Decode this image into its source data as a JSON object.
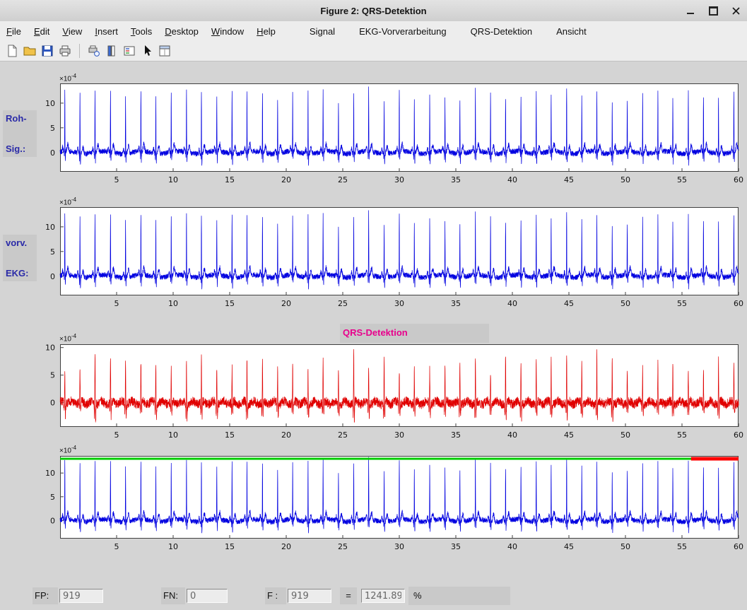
{
  "window": {
    "title": "Figure 2: QRS-Detektion",
    "controls": [
      "minimize",
      "maximize",
      "close"
    ]
  },
  "menu": {
    "items": [
      {
        "label": "File",
        "accel": true
      },
      {
        "label": "Edit",
        "accel": true
      },
      {
        "label": "View",
        "accel": true
      },
      {
        "label": "Insert",
        "accel": true
      },
      {
        "label": "Tools",
        "accel": true
      },
      {
        "label": "Desktop",
        "accel": true
      },
      {
        "label": "Window",
        "accel": true
      },
      {
        "label": "Help",
        "accel": true
      },
      {
        "label": "Signal",
        "accel": false,
        "gap_before": true,
        "wide": true
      },
      {
        "label": "EKG-Vorverarbeitung",
        "accel": false,
        "wide": true
      },
      {
        "label": "QRS-Detektion",
        "accel": false,
        "wide": true
      },
      {
        "label": "Ansicht",
        "accel": false,
        "wide": true
      }
    ]
  },
  "toolbar": {
    "icons": [
      "new-file",
      "open-folder",
      "save",
      "print",
      "separator",
      "print-preview",
      "colorbar",
      "legend",
      "pointer",
      "property-inspector"
    ]
  },
  "labels": {
    "exponent_base": "×10",
    "exponent_power": "-4",
    "raw_line1": "Roh-",
    "raw_line2": "Sig.:",
    "pre_line1": "vorv.",
    "pre_line2": "EKG:",
    "qrs_title": "QRS-Detektion"
  },
  "stats": {
    "fp_label": "FP:",
    "fp_value": "919",
    "fn_label": "FN:",
    "fn_value": "0",
    "f_label": "F :",
    "f_value": "919",
    "equals_label": "=",
    "percent_value": "1241.891",
    "percent_sign": "%"
  },
  "chart_data": [
    {
      "type": "line",
      "name": "raw-ecg-signal",
      "signal": "ecg",
      "color": "#0000e0",
      "seed": 42,
      "x_range_s": [
        0,
        60
      ],
      "xticks": [
        5,
        10,
        15,
        20,
        25,
        30,
        35,
        40,
        45,
        50,
        55,
        60
      ],
      "ylim_e4": [
        -3.9,
        14.0
      ],
      "yticks_e4": [
        0,
        5,
        10
      ],
      "y_scale_label": "×10^-4",
      "sample_dt_s": 0.01,
      "r_amp_range_e4": [
        10.6,
        13.4
      ],
      "beats_s": [
        0.42,
        1.76,
        3.09,
        4.46,
        5.79,
        7.15,
        8.47,
        9.83,
        11.18,
        12.5,
        13.86,
        15.21,
        16.53,
        17.9,
        19.24,
        20.57,
        21.93,
        23.26,
        24.62,
        25.97,
        27.29,
        28.66,
        30.0,
        31.33,
        32.69,
        34.04,
        35.36,
        36.73,
        38.07,
        39.4,
        40.76,
        42.11,
        43.43,
        44.8,
        46.14,
        47.47,
        48.83,
        50.16,
        51.52,
        52.87,
        54.19,
        55.56,
        56.9,
        58.23,
        59.59
      ]
    },
    {
      "type": "line",
      "name": "preprocessed-ecg",
      "signal": "ecg",
      "color": "#0000e0",
      "seed": 42,
      "x_range_s": [
        0,
        60
      ],
      "xticks": [
        5,
        10,
        15,
        20,
        25,
        30,
        35,
        40,
        45,
        50,
        55,
        60
      ],
      "ylim_e4": [
        -3.9,
        14.0
      ],
      "yticks_e4": [
        0,
        5,
        10
      ],
      "y_scale_label": "×10^-4",
      "sample_dt_s": 0.01,
      "r_amp_range_e4": [
        10.6,
        13.4
      ],
      "beats_s": [
        0.42,
        1.76,
        3.09,
        4.46,
        5.79,
        7.15,
        8.47,
        9.83,
        11.18,
        12.5,
        13.86,
        15.21,
        16.53,
        17.9,
        19.24,
        20.57,
        21.93,
        23.26,
        24.62,
        25.97,
        27.29,
        28.66,
        30.0,
        31.33,
        32.69,
        34.04,
        35.36,
        36.73,
        38.07,
        39.4,
        40.76,
        42.11,
        43.43,
        44.8,
        46.14,
        47.47,
        48.83,
        50.16,
        51.52,
        52.87,
        54.19,
        55.56,
        56.9,
        58.23,
        59.59
      ]
    },
    {
      "type": "line",
      "name": "qrs-detection-function",
      "signal": "detection",
      "color": "#e00000",
      "seed": 7,
      "x_range_s": [
        0,
        60
      ],
      "xticks": [
        5,
        10,
        15,
        20,
        25,
        30,
        35,
        40,
        45,
        50,
        55,
        60
      ],
      "ylim_e4": [
        -4.4,
        10.6
      ],
      "yticks_e4": [
        0,
        5,
        10
      ],
      "y_scale_label": "×10^-4",
      "sample_dt_s": 0.01,
      "det_amp_range_e4": [
        6.0,
        9.8
      ],
      "beats_s": [
        0.42,
        1.76,
        3.09,
        4.46,
        5.79,
        7.15,
        8.47,
        9.83,
        11.18,
        12.5,
        13.86,
        15.21,
        16.53,
        17.9,
        19.24,
        20.57,
        21.93,
        23.26,
        24.62,
        25.97,
        27.29,
        28.66,
        30.0,
        31.33,
        32.69,
        34.04,
        35.36,
        36.73,
        38.07,
        39.4,
        40.76,
        42.11,
        43.43,
        44.8,
        46.14,
        47.47,
        48.83,
        50.16,
        51.52,
        52.87,
        54.19,
        55.56,
        56.9,
        58.23,
        59.59
      ]
    },
    {
      "type": "line",
      "name": "ecg-with-detections",
      "signal": "ecg",
      "color": "#0000e0",
      "seed": 42,
      "x_range_s": [
        0,
        60
      ],
      "xticks": [
        5,
        10,
        15,
        20,
        25,
        30,
        35,
        40,
        45,
        50,
        55,
        60
      ],
      "ylim_e4": [
        -3.8,
        13.6
      ],
      "yticks_e4": [
        0,
        5,
        10
      ],
      "y_scale_label": "×10^-4",
      "sample_dt_s": 0.01,
      "r_amp_range_e4": [
        10.6,
        13.4
      ],
      "beats_s": [
        0.42,
        1.76,
        3.09,
        4.46,
        5.79,
        7.15,
        8.47,
        9.83,
        11.18,
        12.5,
        13.86,
        15.21,
        16.53,
        17.9,
        19.24,
        20.57,
        21.93,
        23.26,
        24.62,
        25.97,
        27.29,
        28.66,
        30.0,
        31.33,
        32.69,
        34.04,
        35.36,
        36.73,
        38.07,
        39.4,
        40.76,
        42.11,
        43.43,
        44.8,
        46.14,
        47.47,
        48.83,
        50.16,
        51.52,
        52.87,
        54.19,
        55.56,
        56.9,
        58.23,
        59.59
      ],
      "overlays": [
        {
          "kind": "threshold-line",
          "color": "#00cc00",
          "y_e4": 13.0,
          "x_s": [
            0,
            60
          ]
        },
        {
          "kind": "detected-segment",
          "color": "#ff0000",
          "y_e4": 13.0,
          "x_s": [
            55.8,
            60
          ]
        }
      ]
    }
  ]
}
